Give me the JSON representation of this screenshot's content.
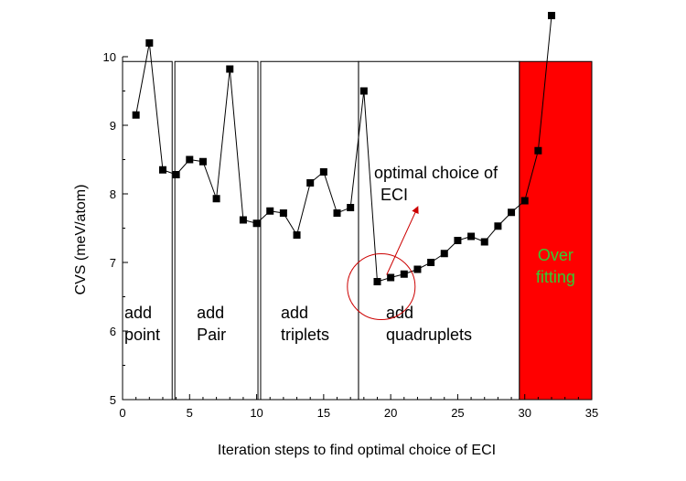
{
  "chart_data": {
    "type": "line",
    "title": "",
    "xlabel": "Iteration steps to find optimal choice of ECI",
    "ylabel": "CVS (meV/atom)",
    "xlim": [
      0,
      35
    ],
    "ylim": [
      5,
      10
    ],
    "xticks": [
      0,
      5,
      10,
      15,
      20,
      25,
      30,
      35
    ],
    "yticks": [
      5,
      6,
      7,
      8,
      9,
      10
    ],
    "grid": false,
    "legend": "none",
    "series": [
      {
        "marker": "square",
        "color": "#000000",
        "x": [
          1,
          2,
          3,
          4,
          5,
          6,
          7,
          8,
          9,
          10,
          11,
          12,
          13,
          14,
          15,
          16,
          17,
          18,
          19,
          20,
          21,
          22,
          23,
          24,
          25,
          26,
          27,
          28,
          29,
          30,
          31,
          32
        ],
        "y": [
          9.15,
          10.2,
          8.35,
          8.28,
          8.5,
          8.47,
          7.93,
          9.82,
          7.62,
          7.57,
          7.75,
          7.72,
          7.4,
          8.16,
          8.32,
          7.72,
          7.8,
          9.5,
          6.72,
          6.78,
          6.83,
          6.9,
          7.0,
          7.13,
          7.32,
          7.38,
          7.3,
          7.53,
          7.73,
          7.9,
          8.63,
          10.6
        ]
      }
    ],
    "regions": [
      {
        "label_lines": [
          "add",
          "point"
        ],
        "x_start": 0,
        "x_end": 3.7,
        "y_top": 9.93,
        "fill": "none"
      },
      {
        "label_lines": [
          "add",
          "Pair"
        ],
        "x_start": 3.9,
        "x_end": 10.1,
        "y_top": 9.93,
        "fill": "none"
      },
      {
        "label_lines": [
          "add",
          "triplets"
        ],
        "x_start": 10.3,
        "x_end": 17.6,
        "y_top": 9.93,
        "fill": "none"
      },
      {
        "label_lines": [
          "add",
          "quadruplets"
        ],
        "x_start": 17.6,
        "x_end": 29.6,
        "y_top": 9.93,
        "fill": "none"
      },
      {
        "label_lines": [
          "Over",
          "fitting"
        ],
        "x_start": 29.6,
        "x_end": 35,
        "y_top": 9.93,
        "fill": "#ff0000",
        "label_color": "#33cc33"
      }
    ],
    "annotations": [
      {
        "label_lines": [
          "optimal choice of",
          "ECI"
        ],
        "circle_at": {
          "x": 19.5,
          "y": 6.7
        },
        "arrow_to": {
          "x": 22,
          "y": 7.8
        },
        "color": "#cc0000"
      }
    ]
  }
}
